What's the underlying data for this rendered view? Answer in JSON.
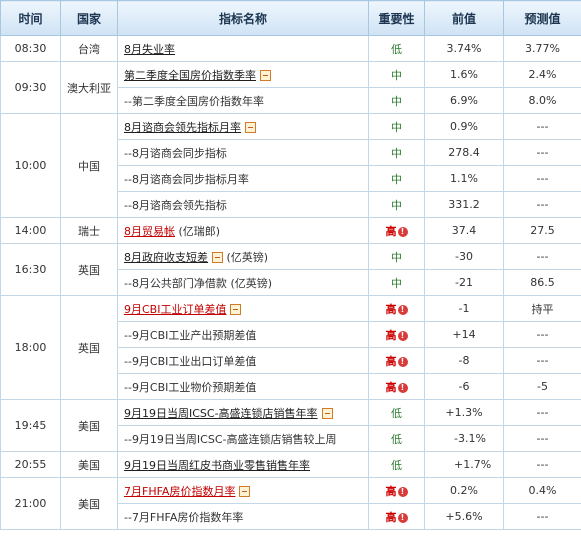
{
  "headers": [
    "时间",
    "国家",
    "指标名称",
    "重要性",
    "前值",
    "预测值"
  ],
  "r1": {
    "time": "08:30",
    "country": "台湾",
    "name": "8月失业率",
    "imp": "低",
    "prev": "3.74%",
    "fcst": "3.77%"
  },
  "r2": {
    "time": "09:30",
    "country": "澳大利亚",
    "name": "第二季度全国房价指数季率",
    "imp": "中",
    "prev": "1.6%",
    "fcst": "2.4%"
  },
  "r3": {
    "name": "--第二季度全国房价指数年率",
    "imp": "中",
    "prev": "6.9%",
    "fcst": "8.0%"
  },
  "r4": {
    "time": "10:00",
    "country": "中国",
    "name": "8月谘商会领先指标月率",
    "imp": "中",
    "prev": "0.9%",
    "fcst": "---"
  },
  "r5": {
    "name": "--8月谘商会同步指标",
    "imp": "中",
    "prev": "278.4",
    "fcst": "---"
  },
  "r6": {
    "name": "--8月谘商会同步指标月率",
    "imp": "中",
    "prev": "1.1%",
    "fcst": "---"
  },
  "r7": {
    "name": "--8月谘商会领先指标",
    "imp": "中",
    "prev": "331.2",
    "fcst": "---"
  },
  "r8": {
    "time": "14:00",
    "country": "瑞士",
    "name": "8月贸易帐",
    "suffix": "(亿瑞郎)",
    "imp": "高",
    "prev": "37.4",
    "fcst": "27.5"
  },
  "r9": {
    "time": "16:30",
    "country": "英国",
    "name": "8月政府收支短差",
    "suffix": "(亿英镑)",
    "imp": "中",
    "prev": "-30",
    "fcst": "---"
  },
  "r10": {
    "name": "--8月公共部门净借款",
    "suffix": "(亿英镑)",
    "imp": "中",
    "prev": "-21",
    "fcst": "86.5"
  },
  "r11": {
    "time": "18:00",
    "country": "英国",
    "name": "9月CBI工业订单差值",
    "imp": "高",
    "prev": "-1",
    "fcst": "持平"
  },
  "r12": {
    "name": "--9月CBI工业产出预期差值",
    "imp": "高",
    "prev": "+14",
    "fcst": "---"
  },
  "r13": {
    "name": "--9月CBI工业出口订单差值",
    "imp": "高",
    "prev": "-8",
    "fcst": "---"
  },
  "r14": {
    "name": "--9月CBI工业物价预期差值",
    "imp": "高",
    "prev": "-6",
    "fcst": "-5"
  },
  "r15": {
    "time": "19:45",
    "country": "美国",
    "name": "9月19日当周ICSC-高盛连锁店销售年率",
    "imp": "低",
    "prev": "+1.3%",
    "fcst": "---"
  },
  "r16": {
    "name": "--9月19日当周ICSC-高盛连锁店销售较上周",
    "imp": "低",
    "prev": "-3.1%",
    "fcst": "---"
  },
  "r17": {
    "time": "20:55",
    "country": "美国",
    "name": "9月19日当周红皮书商业零售销售年率",
    "imp": "低",
    "prev": "+1.7%",
    "fcst": "---"
  },
  "r18": {
    "time": "21:00",
    "country": "美国",
    "name": "7月FHFA房价指数月率",
    "imp": "高",
    "prev": "0.2%",
    "fcst": "0.4%"
  },
  "r19": {
    "name": "--7月FHFA房价指数年率",
    "imp": "高",
    "prev": "+5.6%",
    "fcst": "---"
  },
  "icons": {
    "expand": "collapse-box-icon",
    "high_alert": "alert-circle-icon"
  },
  "colors": {
    "header_bg": "#cfe3f5",
    "grid": "#c3d7e7",
    "high": "#cc0000",
    "low_mid": "#2e7d2e",
    "link_red": "#c40000"
  }
}
